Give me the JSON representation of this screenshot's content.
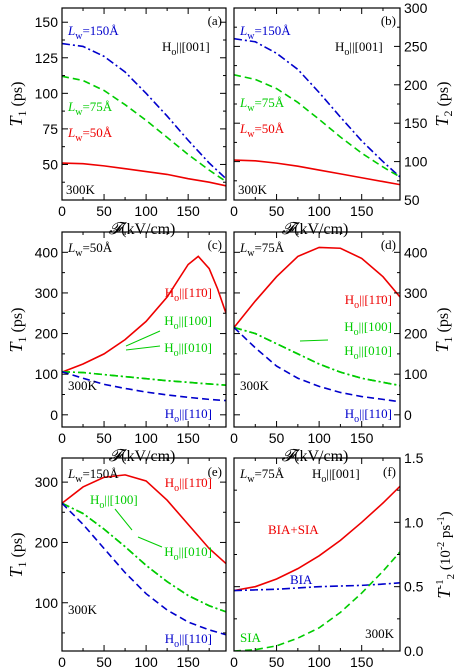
{
  "chart_data": [
    {
      "type": "line",
      "panel_label": "(a)",
      "ylabel": "T1 (ps)",
      "xlabel": "𝓕(kV/cm)",
      "xlim": [
        0,
        195
      ],
      "ylim": [
        25,
        160
      ],
      "x_ticks": [
        0,
        50,
        100,
        150
      ],
      "y_ticks": [
        50,
        75,
        100,
        125,
        150
      ],
      "y_tick_labels": [
        "50",
        "75",
        "100",
        "125",
        "150"
      ],
      "annotations": [
        "Ho||[001]",
        "300K"
      ],
      "series": [
        {
          "name": "Lw=150Å",
          "color": "#0000cc",
          "dash": "dashdot",
          "x": [
            0,
            25,
            50,
            75,
            100,
            125,
            150,
            175,
            195
          ],
          "y": [
            135,
            133,
            126,
            115,
            100,
            84,
            67,
            51,
            40
          ]
        },
        {
          "name": "Lw=75Å",
          "color": "#00cc00",
          "dash": "dash",
          "x": [
            0,
            25,
            50,
            75,
            100,
            125,
            150,
            175,
            195
          ],
          "y": [
            112,
            109,
            102,
            92,
            81,
            69,
            57,
            46,
            38
          ]
        },
        {
          "name": "Lw=50Å",
          "color": "#ee0000",
          "dash": "solid",
          "x": [
            0,
            25,
            50,
            75,
            100,
            125,
            150,
            175,
            195
          ],
          "y": [
            51,
            50.5,
            49,
            47,
            45,
            43,
            40,
            37.5,
            35
          ]
        }
      ]
    },
    {
      "type": "line",
      "panel_label": "(b)",
      "ylabel": "T2 (ps)",
      "xlabel": "𝓕(kV/cm)",
      "xlim": [
        0,
        195
      ],
      "ylim": [
        50,
        300
      ],
      "x_ticks": [
        0,
        50,
        100,
        150
      ],
      "y_ticks": [
        50,
        100,
        150,
        200,
        250,
        300
      ],
      "y_tick_labels": [
        "50",
        "100",
        "150",
        "200",
        "250",
        "300"
      ],
      "annotations": [
        "Ho||[001]",
        "300K"
      ],
      "series": [
        {
          "name": "Lw=150Å",
          "color": "#0000cc",
          "dash": "dashdot",
          "x": [
            0,
            25,
            50,
            75,
            100,
            125,
            150,
            175,
            195
          ],
          "y": [
            260,
            256,
            241,
            220,
            190,
            158,
            127,
            100,
            80
          ]
        },
        {
          "name": "Lw=75Å",
          "color": "#00cc00",
          "dash": "dash",
          "x": [
            0,
            25,
            50,
            75,
            100,
            125,
            150,
            175,
            195
          ],
          "y": [
            213,
            207,
            195,
            177,
            155,
            132,
            111,
            93,
            80
          ]
        },
        {
          "name": "Lw=50Å",
          "color": "#ee0000",
          "dash": "solid",
          "x": [
            0,
            25,
            50,
            75,
            100,
            125,
            150,
            175,
            195
          ],
          "y": [
            102,
            101,
            98,
            94,
            89,
            84,
            79,
            74,
            70
          ]
        }
      ]
    },
    {
      "type": "line",
      "panel_label": "(c)",
      "ylabel": "T1 (ps)",
      "xlabel": "𝓕(kV/cm)",
      "xlim": [
        0,
        195
      ],
      "ylim": [
        -30,
        450
      ],
      "x_ticks": [
        0,
        50,
        100,
        150
      ],
      "y_ticks": [
        0,
        100,
        200,
        300,
        400
      ],
      "y_tick_labels": [
        "0",
        "100",
        "200",
        "300",
        "400"
      ],
      "annotations": [
        "Lw=50Å",
        "300K"
      ],
      "series": [
        {
          "name": "Ho||[11̄0]",
          "color": "#ee0000",
          "dash": "solid",
          "x": [
            0,
            25,
            50,
            75,
            100,
            125,
            150,
            162,
            175,
            185,
            195
          ],
          "y": [
            105,
            125,
            150,
            185,
            230,
            290,
            370,
            390,
            360,
            310,
            250
          ]
        },
        {
          "name": "Ho||[100]",
          "color": "#00cc00",
          "dash": "dashdot",
          "x": [
            0,
            25,
            50,
            75,
            100,
            125,
            150,
            175,
            195
          ],
          "y": [
            106,
            104,
            99,
            94,
            89,
            84,
            80,
            76,
            73
          ]
        },
        {
          "name": "Ho||[010]",
          "color": "#00cc00",
          "dash": "dashdot",
          "x": [
            0,
            25,
            50,
            75,
            100,
            125,
            150,
            175,
            195
          ],
          "y": [
            106,
            104,
            99,
            94,
            89,
            84,
            80,
            76,
            73
          ]
        },
        {
          "name": "Ho||[110]",
          "color": "#0000cc",
          "dash": "dash",
          "x": [
            0,
            25,
            50,
            75,
            100,
            125,
            150,
            175,
            195
          ],
          "y": [
            106,
            90,
            75,
            65,
            56,
            49,
            43,
            38,
            35
          ]
        }
      ]
    },
    {
      "type": "line",
      "panel_label": "(d)",
      "ylabel": "T1 (ps)",
      "xlabel": "𝓕(kV/cm)",
      "xlim": [
        0,
        195
      ],
      "ylim": [
        -30,
        450
      ],
      "x_ticks": [
        0,
        50,
        100,
        150
      ],
      "y_ticks": [
        0,
        100,
        200,
        300,
        400
      ],
      "y_tick_labels": [
        "0",
        "100",
        "200",
        "300",
        "400"
      ],
      "annotations": [
        "Lw=75Å",
        "300K"
      ],
      "series": [
        {
          "name": "Ho||[11̄0]",
          "color": "#ee0000",
          "dash": "solid",
          "x": [
            0,
            25,
            50,
            75,
            100,
            125,
            150,
            175,
            195
          ],
          "y": [
            215,
            280,
            340,
            390,
            412,
            410,
            385,
            340,
            290
          ]
        },
        {
          "name": "Ho||[100]",
          "color": "#00cc00",
          "dash": "dashdot",
          "x": [
            0,
            25,
            50,
            75,
            100,
            125,
            150,
            175,
            195
          ],
          "y": [
            215,
            200,
            175,
            150,
            125,
            105,
            90,
            80,
            72
          ]
        },
        {
          "name": "Ho||[010]",
          "color": "#00cc00",
          "dash": "dashdot",
          "x": [
            0,
            25,
            50,
            75,
            100,
            125,
            150,
            175,
            195
          ],
          "y": [
            215,
            200,
            175,
            150,
            125,
            105,
            90,
            80,
            72
          ]
        },
        {
          "name": "Ho||[110]",
          "color": "#0000cc",
          "dash": "dash",
          "x": [
            0,
            25,
            50,
            75,
            100,
            125,
            150,
            175,
            195
          ],
          "y": [
            215,
            165,
            120,
            90,
            70,
            55,
            45,
            38,
            32
          ]
        }
      ]
    },
    {
      "type": "line",
      "panel_label": "(e)",
      "ylabel": "T1 (ps)",
      "xlabel": "𝓕(kV/cm)",
      "xlim": [
        0,
        195
      ],
      "ylim": [
        20,
        340
      ],
      "x_ticks": [
        0,
        50,
        100,
        150
      ],
      "y_ticks": [
        100,
        200,
        300
      ],
      "y_tick_labels": [
        "100",
        "200",
        "300"
      ],
      "annotations": [
        "Lw=150Å",
        "300K"
      ],
      "series": [
        {
          "name": "Ho||[11̄0]",
          "color": "#ee0000",
          "dash": "solid",
          "x": [
            0,
            25,
            50,
            75,
            100,
            125,
            150,
            175,
            195
          ],
          "y": [
            265,
            292,
            308,
            312,
            302,
            270,
            230,
            190,
            165
          ]
        },
        {
          "name": "Ho||[100]",
          "color": "#00cc00",
          "dash": "dashdot",
          "x": [
            0,
            25,
            50,
            75,
            100,
            125,
            150,
            175,
            195
          ],
          "y": [
            265,
            248,
            222,
            193,
            162,
            135,
            112,
            95,
            85
          ]
        },
        {
          "name": "Ho||[010]",
          "color": "#00cc00",
          "dash": "dashdot",
          "x": [
            0,
            25,
            50,
            75,
            100,
            125,
            150,
            175,
            195
          ],
          "y": [
            265,
            248,
            222,
            193,
            162,
            135,
            112,
            95,
            85
          ]
        },
        {
          "name": "Ho||[110]",
          "color": "#0000cc",
          "dash": "dash",
          "x": [
            0,
            25,
            50,
            75,
            100,
            125,
            150,
            175,
            195
          ],
          "y": [
            265,
            230,
            190,
            150,
            115,
            88,
            68,
            55,
            47
          ]
        }
      ]
    },
    {
      "type": "line",
      "panel_label": "(f)",
      "ylabel": "T2^-1 (10^-2 ps^-1)",
      "xlabel": "𝓕(kV/cm)",
      "xlim": [
        0,
        195
      ],
      "ylim": [
        0,
        1.5
      ],
      "x_ticks": [
        0,
        50,
        100,
        150
      ],
      "y_ticks": [
        0,
        0.5,
        1,
        1.5
      ],
      "y_tick_labels": [
        "0.0",
        "0.5",
        "1.0",
        "1.5"
      ],
      "annotations": [
        "Lw=75Å",
        "Ho||[001]",
        "300K"
      ],
      "series": [
        {
          "name": "BIA+SIA",
          "color": "#ee0000",
          "dash": "solid",
          "x": [
            0,
            25,
            50,
            75,
            100,
            125,
            150,
            175,
            195
          ],
          "y": [
            0.47,
            0.5,
            0.56,
            0.64,
            0.74,
            0.86,
            1.0,
            1.15,
            1.28
          ]
        },
        {
          "name": "BIA",
          "color": "#0000cc",
          "dash": "dashdot",
          "x": [
            0,
            25,
            50,
            75,
            100,
            125,
            150,
            175,
            195
          ],
          "y": [
            0.47,
            0.475,
            0.48,
            0.49,
            0.5,
            0.505,
            0.51,
            0.52,
            0.53
          ]
        },
        {
          "name": "SIA",
          "color": "#00cc00",
          "dash": "dash",
          "x": [
            0,
            25,
            50,
            75,
            100,
            125,
            150,
            175,
            195
          ],
          "y": [
            0,
            0.01,
            0.04,
            0.1,
            0.18,
            0.3,
            0.45,
            0.62,
            0.77
          ]
        }
      ]
    }
  ],
  "panels": {
    "a": {
      "label": "(a)",
      "lw150": "L",
      "lw150_sub": "w",
      "lw150_val": "=150Å",
      "lw75_val": "=75Å",
      "lw50_val": "=50Å",
      "field": "H",
      "field_sub": "o",
      "field_dir": "||[001]",
      "temp": "300K"
    },
    "b": {
      "label": "(b)",
      "temp": "300K"
    },
    "c": {
      "label": "(c)",
      "lw_val": "=50Å",
      "temp": "300K"
    },
    "d": {
      "label": "(d)",
      "lw_val": "=75Å",
      "temp": "300K"
    },
    "e": {
      "label": "(e)",
      "lw_val": "=150Å",
      "temp": "300K"
    },
    "f": {
      "label": "(f)",
      "lw_val": "=75Å",
      "temp": "300K",
      "bia_sia": "BIA+SIA",
      "bia": "BIA",
      "sia": "SIA"
    }
  },
  "axis_text": {
    "xlabel_unit": "(kV/cm)",
    "t1": "T",
    "t1_sub": "1",
    "ps": " (ps)",
    "t2_sub": "2",
    "f_right_main": "T",
    "f_right_unit": " (10",
    "f_right_exp": "-2",
    "f_right_ps": " ps",
    "f_right_psexp": "-1",
    "f_right_close": ")",
    "f_right_sup": "-1",
    "f_right_sub": "2"
  },
  "directions": {
    "d110bar": "||[11̄0]",
    "d100": "||[100]",
    "d010": "||[010]",
    "d110": "||[110]",
    "d001": "||[001]"
  },
  "colors": {
    "red": "#ee0000",
    "green": "#00cc00",
    "blue": "#0000cc"
  }
}
